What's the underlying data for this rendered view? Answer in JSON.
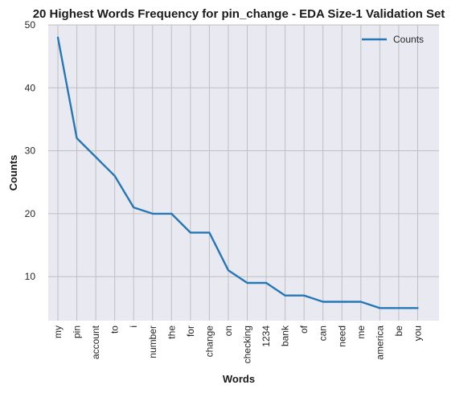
{
  "chart_data": {
    "type": "line",
    "title": "20 Highest Words Frequency for pin_change - EDA Size-1 Validation Set",
    "xlabel": "Words",
    "ylabel": "Counts",
    "categories": [
      "my",
      "pin",
      "account",
      "to",
      "i",
      "number",
      "the",
      "for",
      "change",
      "on",
      "checking",
      "1234",
      "bank",
      "of",
      "can",
      "need",
      "me",
      "america",
      "be",
      "you"
    ],
    "series": [
      {
        "name": "Counts",
        "values": [
          48,
          32,
          29,
          26,
          21,
          20,
          20,
          17,
          17,
          11,
          9,
          9,
          7,
          7,
          6,
          6,
          6,
          5,
          5,
          5
        ]
      }
    ],
    "ylim": [
      3,
      50
    ],
    "yticks": [
      10,
      20,
      30,
      40,
      50
    ],
    "grid": true,
    "legend": "top-right",
    "colors": {
      "line": "#2677b5",
      "plot_bg": "#e9e9f2",
      "grid": "#bfbfbf"
    }
  }
}
